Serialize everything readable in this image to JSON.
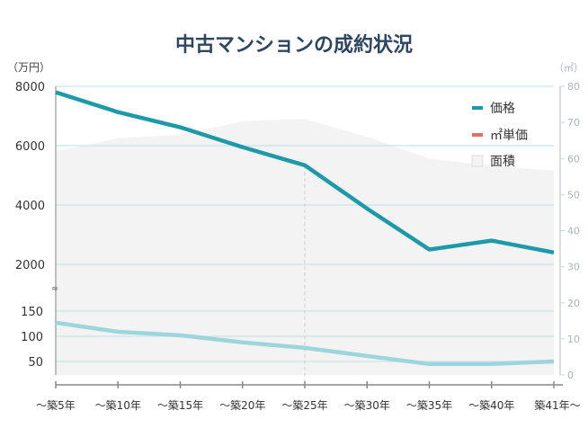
{
  "chart_data": {
    "type": "line",
    "title": "中古マンションの成約状況",
    "left_unit": "（万円）",
    "right_unit": "（㎡）",
    "categories": [
      "〜築5年",
      "〜築10年",
      "〜築15年",
      "〜築20年",
      "〜築25年",
      "〜築30年",
      "〜築35年",
      "〜築40年",
      "築41年〜"
    ],
    "price_axis": {
      "ticks": [
        "8000",
        "6000",
        "4000",
        "2000"
      ],
      "ylim": [
        1700,
        8000
      ]
    },
    "unit_price_axis": {
      "ticks": [
        "150",
        "100",
        "50"
      ],
      "ylim": [
        23,
        175
      ]
    },
    "area_axis": {
      "ticks": [
        "80",
        "70",
        "60",
        "50",
        "40",
        "30",
        "20",
        "10",
        "0"
      ],
      "ylim": [
        0,
        80
      ]
    },
    "axis_break": true,
    "grid": true,
    "highlight_category": "〜築25年",
    "series": [
      {
        "name": "価格",
        "type": "line",
        "axis": "price",
        "color": "#1f99a8",
        "values": [
          7800,
          7130,
          6620,
          5950,
          5340,
          3880,
          2500,
          2800,
          2400
        ]
      },
      {
        "name": "㎡単価",
        "type": "line",
        "axis": "unit_price",
        "color": "#9dd5dc",
        "legend_color": "#e07060",
        "values": [
          127,
          109,
          102,
          88,
          77,
          61,
          45,
          45,
          50
        ]
      },
      {
        "name": "面積",
        "type": "area",
        "axis": "area",
        "color": "#f3f3f3",
        "values": [
          62,
          65.6,
          66.6,
          70.3,
          71,
          66,
          60,
          58,
          56.6
        ]
      }
    ],
    "legend_position": "top-right"
  }
}
